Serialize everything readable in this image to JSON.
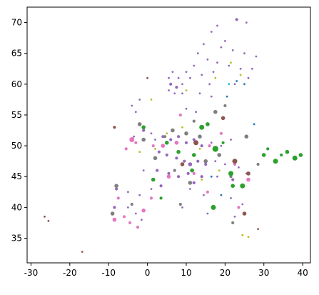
{
  "chart_data": {
    "type": "scatter",
    "title": "",
    "xlabel": "",
    "ylabel": "",
    "xlim": [
      -31,
      42
    ],
    "ylim": [
      31,
      72.5
    ],
    "x_ticks": [
      -30,
      -20,
      -10,
      0,
      10,
      20,
      30,
      40
    ],
    "y_ticks": [
      35,
      40,
      45,
      50,
      55,
      60,
      65,
      70
    ],
    "grid": false,
    "legend": "none",
    "palette": [
      "#9467bd",
      "#e377c2",
      "#7f7f7f",
      "#2ca02c",
      "#8c564b",
      "#bcbd22",
      "#1f77b4",
      "#17becf",
      "#d62728",
      "#ff7f0e"
    ],
    "point_colors": [
      "#9467bd",
      "#9467bd",
      "#9467bd",
      "#9467bd",
      "#9467bd",
      "#9467bd",
      "#9467bd",
      "#9467bd",
      "#9467bd",
      "#9467bd",
      "#9467bd",
      "#9467bd",
      "#9467bd",
      "#9467bd",
      "#9467bd",
      "#9467bd",
      "#9467bd",
      "#9467bd",
      "#9467bd",
      "#9467bd",
      "#9467bd",
      "#9467bd",
      "#9467bd",
      "#9467bd",
      "#9467bd",
      "#9467bd",
      "#9467bd",
      "#9467bd",
      "#9467bd",
      "#9467bd",
      "#9467bd",
      "#9467bd",
      "#9467bd",
      "#9467bd",
      "#9467bd",
      "#9467bd",
      "#9467bd",
      "#9467bd",
      "#9467bd",
      "#9467bd",
      "#9467bd",
      "#9467bd",
      "#9467bd",
      "#9467bd",
      "#9467bd",
      "#9467bd",
      "#9467bd",
      "#9467bd",
      "#9467bd",
      "#9467bd",
      "#9467bd",
      "#9467bd",
      "#9467bd",
      "#9467bd",
      "#9467bd",
      "#9467bd",
      "#9467bd",
      "#9467bd",
      "#9467bd",
      "#9467bd",
      "#9467bd",
      "#9467bd",
      "#9467bd",
      "#9467bd",
      "#9467bd",
      "#9467bd",
      "#9467bd",
      "#9467bd",
      "#9467bd",
      "#9467bd",
      "#9467bd",
      "#9467bd",
      "#9467bd",
      "#9467bd",
      "#9467bd",
      "#9467bd",
      "#9467bd",
      "#9467bd",
      "#9467bd",
      "#9467bd",
      "#9467bd",
      "#9467bd",
      "#9467bd",
      "#9467bd",
      "#9467bd",
      "#9467bd",
      "#9467bd",
      "#9467bd",
      "#9467bd",
      "#9467bd",
      "#e377c2",
      "#e377c2",
      "#e377c2",
      "#e377c2",
      "#e377c2",
      "#e377c2",
      "#e377c2",
      "#e377c2",
      "#e377c2",
      "#e377c2",
      "#e377c2",
      "#e377c2",
      "#e377c2",
      "#e377c2",
      "#e377c2",
      "#e377c2",
      "#e377c2",
      "#e377c2",
      "#e377c2",
      "#e377c2",
      "#e377c2",
      "#e377c2",
      "#7f7f7f",
      "#7f7f7f",
      "#7f7f7f",
      "#7f7f7f",
      "#7f7f7f",
      "#7f7f7f",
      "#7f7f7f",
      "#7f7f7f",
      "#7f7f7f",
      "#7f7f7f",
      "#7f7f7f",
      "#7f7f7f",
      "#7f7f7f",
      "#7f7f7f",
      "#7f7f7f",
      "#7f7f7f",
      "#7f7f7f",
      "#7f7f7f",
      "#7f7f7f",
      "#7f7f7f",
      "#7f7f7f",
      "#7f7f7f",
      "#2ca02c",
      "#2ca02c",
      "#2ca02c",
      "#2ca02c",
      "#2ca02c",
      "#2ca02c",
      "#2ca02c",
      "#2ca02c",
      "#2ca02c",
      "#2ca02c",
      "#2ca02c",
      "#2ca02c",
      "#2ca02c",
      "#2ca02c",
      "#2ca02c",
      "#2ca02c",
      "#2ca02c",
      "#2ca02c",
      "#2ca02c",
      "#2ca02c",
      "#2ca02c",
      "#2ca02c",
      "#8c564b",
      "#8c564b",
      "#8c564b",
      "#8c564b",
      "#8c564b",
      "#8c564b",
      "#8c564b",
      "#8c564b",
      "#8c564b",
      "#8c564b",
      "#8c564b",
      "#8c564b",
      "#bcbd22",
      "#bcbd22",
      "#bcbd22",
      "#bcbd22",
      "#bcbd22",
      "#bcbd22",
      "#bcbd22",
      "#bcbd22",
      "#bcbd22",
      "#bcbd22",
      "#bcbd22",
      "#bcbd22",
      "#bcbd22",
      "#bcbd22",
      "#1f77b4",
      "#1f77b4",
      "#1f77b4",
      "#1f77b4",
      "#1f77b4",
      "#1f77b4",
      "#17becf",
      "#17becf",
      "#17becf",
      "#d62728",
      "#d62728",
      "#d62728",
      "#ff7f0e"
    ],
    "points": [
      {
        "x": 23.0,
        "y": 70.5,
        "s": 3
      },
      {
        "x": 25.5,
        "y": 70.0,
        "s": 2
      },
      {
        "x": 18.0,
        "y": 69.5,
        "s": 2
      },
      {
        "x": 16.5,
        "y": 68.5,
        "s": 2
      },
      {
        "x": 20.0,
        "y": 67.0,
        "s": 2
      },
      {
        "x": 14.5,
        "y": 66.5,
        "s": 2
      },
      {
        "x": 19.0,
        "y": 66.0,
        "s": 2
      },
      {
        "x": 22.0,
        "y": 65.5,
        "s": 2
      },
      {
        "x": 25.0,
        "y": 65.0,
        "s": 2
      },
      {
        "x": 13.0,
        "y": 65.0,
        "s": 2
      },
      {
        "x": 28.0,
        "y": 64.5,
        "s": 2
      },
      {
        "x": 15.5,
        "y": 64.0,
        "s": 2
      },
      {
        "x": 18.0,
        "y": 63.5,
        "s": 2
      },
      {
        "x": 12.0,
        "y": 63.0,
        "s": 2
      },
      {
        "x": 21.0,
        "y": 63.0,
        "s": 2
      },
      {
        "x": 24.0,
        "y": 62.5,
        "s": 2
      },
      {
        "x": 27.0,
        "y": 62.5,
        "s": 2
      },
      {
        "x": 6.5,
        "y": 62.0,
        "s": 2
      },
      {
        "x": 10.0,
        "y": 62.0,
        "s": 2
      },
      {
        "x": 17.0,
        "y": 62.0,
        "s": 2
      },
      {
        "x": 5.5,
        "y": 61.0,
        "s": 2
      },
      {
        "x": 8.0,
        "y": 61.0,
        "s": 2
      },
      {
        "x": 11.0,
        "y": 61.0,
        "s": 2
      },
      {
        "x": 14.0,
        "y": 61.5,
        "s": 2
      },
      {
        "x": 26.0,
        "y": 61.0,
        "s": 2
      },
      {
        "x": 6.0,
        "y": 60.0,
        "s": 3
      },
      {
        "x": 7.5,
        "y": 59.5,
        "s": 3
      },
      {
        "x": 9.0,
        "y": 60.0,
        "s": 2
      },
      {
        "x": 16.0,
        "y": 60.0,
        "s": 2
      },
      {
        "x": 22.5,
        "y": 60.0,
        "s": 2
      },
      {
        "x": 5.5,
        "y": 59.0,
        "s": 2
      },
      {
        "x": 7.0,
        "y": 58.5,
        "s": 2
      },
      {
        "x": 9.0,
        "y": 58.5,
        "s": 2
      },
      {
        "x": 13.5,
        "y": 58.5,
        "s": 2
      },
      {
        "x": 16.5,
        "y": 58.0,
        "s": 2
      },
      {
        "x": -2.0,
        "y": 57.5,
        "s": 2
      },
      {
        "x": -4.0,
        "y": 56.5,
        "s": 2
      },
      {
        "x": -3.0,
        "y": 55.5,
        "s": 2
      },
      {
        "x": 10.0,
        "y": 56.0,
        "s": 2
      },
      {
        "x": 12.5,
        "y": 55.5,
        "s": 2
      },
      {
        "x": -2.0,
        "y": 53.5,
        "s": 2
      },
      {
        "x": -1.0,
        "y": 52.5,
        "s": 3
      },
      {
        "x": 1.0,
        "y": 52.0,
        "s": 2
      },
      {
        "x": -3.5,
        "y": 51.5,
        "s": 2
      },
      {
        "x": 2.0,
        "y": 51.0,
        "s": 2
      },
      {
        "x": 4.0,
        "y": 51.5,
        "s": 3
      },
      {
        "x": 6.0,
        "y": 51.0,
        "s": 3
      },
      {
        "x": 8.0,
        "y": 51.5,
        "s": 3
      },
      {
        "x": 10.0,
        "y": 50.5,
        "s": 3
      },
      {
        "x": 12.0,
        "y": 51.0,
        "s": 3
      },
      {
        "x": 14.0,
        "y": 50.0,
        "s": 3
      },
      {
        "x": 16.5,
        "y": 50.5,
        "s": 2
      },
      {
        "x": 19.0,
        "y": 50.0,
        "s": 2
      },
      {
        "x": 21.5,
        "y": 51.0,
        "s": 2
      },
      {
        "x": 3.0,
        "y": 49.0,
        "s": 3
      },
      {
        "x": 5.0,
        "y": 48.5,
        "s": 3
      },
      {
        "x": 7.5,
        "y": 48.0,
        "s": 3
      },
      {
        "x": 9.5,
        "y": 47.5,
        "s": 3
      },
      {
        "x": 11.0,
        "y": 47.0,
        "s": 4
      },
      {
        "x": 13.0,
        "y": 47.5,
        "s": 3
      },
      {
        "x": 15.0,
        "y": 47.0,
        "s": 3
      },
      {
        "x": 17.5,
        "y": 47.5,
        "s": 2
      },
      {
        "x": 20.0,
        "y": 47.0,
        "s": 2
      },
      {
        "x": 23.5,
        "y": 46.5,
        "s": 2
      },
      {
        "x": -1.0,
        "y": 46.0,
        "s": 2
      },
      {
        "x": 2.5,
        "y": 46.0,
        "s": 3
      },
      {
        "x": 5.5,
        "y": 45.5,
        "s": 3
      },
      {
        "x": 8.0,
        "y": 45.0,
        "s": 3
      },
      {
        "x": 10.5,
        "y": 45.5,
        "s": 3
      },
      {
        "x": 12.0,
        "y": 44.0,
        "s": 3
      },
      {
        "x": 14.0,
        "y": 45.0,
        "s": 3
      },
      {
        "x": 18.0,
        "y": 45.0,
        "s": 2
      },
      {
        "x": 22.0,
        "y": 44.5,
        "s": 3
      },
      {
        "x": 25.5,
        "y": 45.5,
        "s": 2
      },
      {
        "x": -8.0,
        "y": 43.0,
        "s": 3
      },
      {
        "x": -5.0,
        "y": 42.5,
        "s": 2
      },
      {
        "x": -2.0,
        "y": 42.0,
        "s": 2
      },
      {
        "x": 1.0,
        "y": 43.0,
        "s": 2
      },
      {
        "x": 3.5,
        "y": 43.5,
        "s": 3
      },
      {
        "x": 11.0,
        "y": 43.0,
        "s": 2
      },
      {
        "x": 14.5,
        "y": 42.0,
        "s": 2
      },
      {
        "x": -8.5,
        "y": 40.0,
        "s": 3
      },
      {
        "x": -5.0,
        "y": 40.0,
        "s": 2
      },
      {
        "x": -3.0,
        "y": 39.0,
        "s": 2
      },
      {
        "x": -1.5,
        "y": 38.0,
        "s": 2
      },
      {
        "x": 9.0,
        "y": 40.0,
        "s": 2
      },
      {
        "x": 15.5,
        "y": 39.0,
        "s": 2
      },
      {
        "x": 22.5,
        "y": 38.5,
        "s": 2
      },
      {
        "x": 24.5,
        "y": 40.5,
        "s": 2
      },
      {
        "x": 21.5,
        "y": 41.5,
        "s": 2
      },
      {
        "x": -4.5,
        "y": 37.5,
        "s": 3
      },
      {
        "x": -2.5,
        "y": 36.8,
        "s": 3
      },
      {
        "x": -6.0,
        "y": 38.5,
        "s": 3
      },
      {
        "x": -8.5,
        "y": 38.0,
        "s": 4
      },
      {
        "x": -7.5,
        "y": 41.5,
        "s": 3
      },
      {
        "x": -1.0,
        "y": 39.5,
        "s": 4
      },
      {
        "x": 1.0,
        "y": 41.5,
        "s": 3
      },
      {
        "x": 5.5,
        "y": 45.0,
        "s": 4
      },
      {
        "x": 7.5,
        "y": 50.5,
        "s": 4
      },
      {
        "x": 4.0,
        "y": 50.0,
        "s": 4
      },
      {
        "x": -4.0,
        "y": 51.0,
        "s": 5
      },
      {
        "x": -5.5,
        "y": 49.5,
        "s": 3
      },
      {
        "x": 12.0,
        "y": 45.5,
        "s": 3
      },
      {
        "x": 19.0,
        "y": 52.0,
        "s": 3
      },
      {
        "x": 22.5,
        "y": 47.0,
        "s": 3
      },
      {
        "x": 26.0,
        "y": 44.5,
        "s": 4
      },
      {
        "x": 23.5,
        "y": 40.0,
        "s": 3
      },
      {
        "x": -3.0,
        "y": 50.5,
        "s": 3
      },
      {
        "x": 1.5,
        "y": 50.0,
        "s": 3
      },
      {
        "x": 16.0,
        "y": 50.0,
        "s": 3
      },
      {
        "x": 8.5,
        "y": 55.0,
        "s": 3
      },
      {
        "x": 15.5,
        "y": 42.5,
        "s": 3
      },
      {
        "x": -1.0,
        "y": 51.0,
        "s": 4
      },
      {
        "x": 2.0,
        "y": 48.0,
        "s": 4
      },
      {
        "x": 6.5,
        "y": 52.5,
        "s": 4
      },
      {
        "x": 10.0,
        "y": 52.0,
        "s": 4
      },
      {
        "x": 13.5,
        "y": 51.5,
        "s": 4
      },
      {
        "x": 15.0,
        "y": 47.5,
        "s": 4
      },
      {
        "x": 18.5,
        "y": 48.5,
        "s": 4
      },
      {
        "x": 21.5,
        "y": 45.0,
        "s": 3
      },
      {
        "x": 25.5,
        "y": 51.5,
        "s": 4
      },
      {
        "x": 11.0,
        "y": 44.0,
        "s": 4
      },
      {
        "x": 7.0,
        "y": 46.0,
        "s": 3
      },
      {
        "x": 4.5,
        "y": 51.5,
        "s": 3
      },
      {
        "x": 12.0,
        "y": 54.0,
        "s": 3
      },
      {
        "x": 17.5,
        "y": 55.5,
        "s": 4
      },
      {
        "x": 8.5,
        "y": 40.5,
        "s": 3
      },
      {
        "x": -4.0,
        "y": 40.5,
        "s": 3
      },
      {
        "x": -9.0,
        "y": 39.0,
        "s": 4
      },
      {
        "x": 22.0,
        "y": 37.5,
        "s": 3
      },
      {
        "x": 20.0,
        "y": 56.5,
        "s": 3
      },
      {
        "x": 28.5,
        "y": 47.0,
        "s": 3
      },
      {
        "x": -2.0,
        "y": 53.5,
        "s": 4
      },
      {
        "x": -8.0,
        "y": 43.5,
        "s": 4
      },
      {
        "x": 1.5,
        "y": 44.5,
        "s": 4
      },
      {
        "x": 5.0,
        "y": 50.5,
        "s": 4
      },
      {
        "x": 8.0,
        "y": 49.0,
        "s": 4
      },
      {
        "x": 12.0,
        "y": 48.5,
        "s": 4
      },
      {
        "x": 15.5,
        "y": 53.5,
        "s": 4
      },
      {
        "x": 19.5,
        "y": 50.5,
        "s": 3
      },
      {
        "x": 22.0,
        "y": 43.5,
        "s": 4
      },
      {
        "x": 30.0,
        "y": 48.5,
        "s": 4
      },
      {
        "x": 31.0,
        "y": 49.5,
        "s": 3
      },
      {
        "x": 34.5,
        "y": 48.5,
        "s": 3
      },
      {
        "x": 36.0,
        "y": 49.0,
        "s": 4
      },
      {
        "x": 38.0,
        "y": 48.0,
        "s": 5
      },
      {
        "x": 39.5,
        "y": 48.5,
        "s": 4
      },
      {
        "x": 33.0,
        "y": 47.5,
        "s": 5
      },
      {
        "x": 17.0,
        "y": 40.0,
        "s": 5
      },
      {
        "x": 11.5,
        "y": 46.0,
        "s": 4
      },
      {
        "x": -1.0,
        "y": 53.0,
        "s": 4
      },
      {
        "x": 3.5,
        "y": 41.5,
        "s": 3
      },
      {
        "x": 17.5,
        "y": 49.5,
        "s": 6
      },
      {
        "x": 14.0,
        "y": 53.0,
        "s": 5
      },
      {
        "x": 21.5,
        "y": 45.5,
        "s": 5
      },
      {
        "x": 24.5,
        "y": 43.5,
        "s": 5
      },
      {
        "x": 19.5,
        "y": 54.5,
        "s": 4
      },
      {
        "x": 12.5,
        "y": 50.5,
        "s": 5
      },
      {
        "x": 9.0,
        "y": 47.0,
        "s": 4
      },
      {
        "x": 26.0,
        "y": 45.5,
        "s": 4
      },
      {
        "x": 22.5,
        "y": 47.5,
        "s": 5
      },
      {
        "x": -8.5,
        "y": 53.0,
        "s": 3
      },
      {
        "x": 25.0,
        "y": 39.0,
        "s": 4
      },
      {
        "x": 0.0,
        "y": 61.0,
        "s": 2
      },
      {
        "x": -26.5,
        "y": 38.5,
        "s": 2
      },
      {
        "x": -25.5,
        "y": 37.8,
        "s": 2
      },
      {
        "x": -16.8,
        "y": 32.8,
        "s": 2
      },
      {
        "x": 28.5,
        "y": 36.5,
        "s": 2
      },
      {
        "x": 26.0,
        "y": 35.2,
        "s": 2
      },
      {
        "x": 24.5,
        "y": 35.5,
        "s": 2
      },
      {
        "x": 1.0,
        "y": 57.5,
        "s": 2
      },
      {
        "x": 9.0,
        "y": 53.0,
        "s": 2
      },
      {
        "x": 18.5,
        "y": 46.0,
        "s": 2
      },
      {
        "x": -2.0,
        "y": 49.0,
        "s": 2
      },
      {
        "x": 14.0,
        "y": 44.5,
        "s": 2
      },
      {
        "x": 21.5,
        "y": 63.5,
        "s": 2
      },
      {
        "x": 17.5,
        "y": 61.0,
        "s": 2
      },
      {
        "x": 24.0,
        "y": 61.5,
        "s": 2
      },
      {
        "x": 5.0,
        "y": 52.0,
        "s": 2
      },
      {
        "x": 10.0,
        "y": 59.0,
        "s": 2
      },
      {
        "x": 2.0,
        "y": 49.5,
        "s": 2
      },
      {
        "x": 13.5,
        "y": 49.5,
        "s": 2
      },
      {
        "x": 20.5,
        "y": 58.0,
        "s": 2
      },
      {
        "x": 23.0,
        "y": 60.5,
        "s": 2
      },
      {
        "x": 25.0,
        "y": 60.0,
        "s": 2
      },
      {
        "x": 16.5,
        "y": 45.0,
        "s": 2
      },
      {
        "x": 27.5,
        "y": 53.5,
        "s": 2
      },
      {
        "x": 19.0,
        "y": 42.0,
        "s": 2
      },
      {
        "x": 21.0,
        "y": 60.0,
        "s": 2
      }
    ]
  }
}
